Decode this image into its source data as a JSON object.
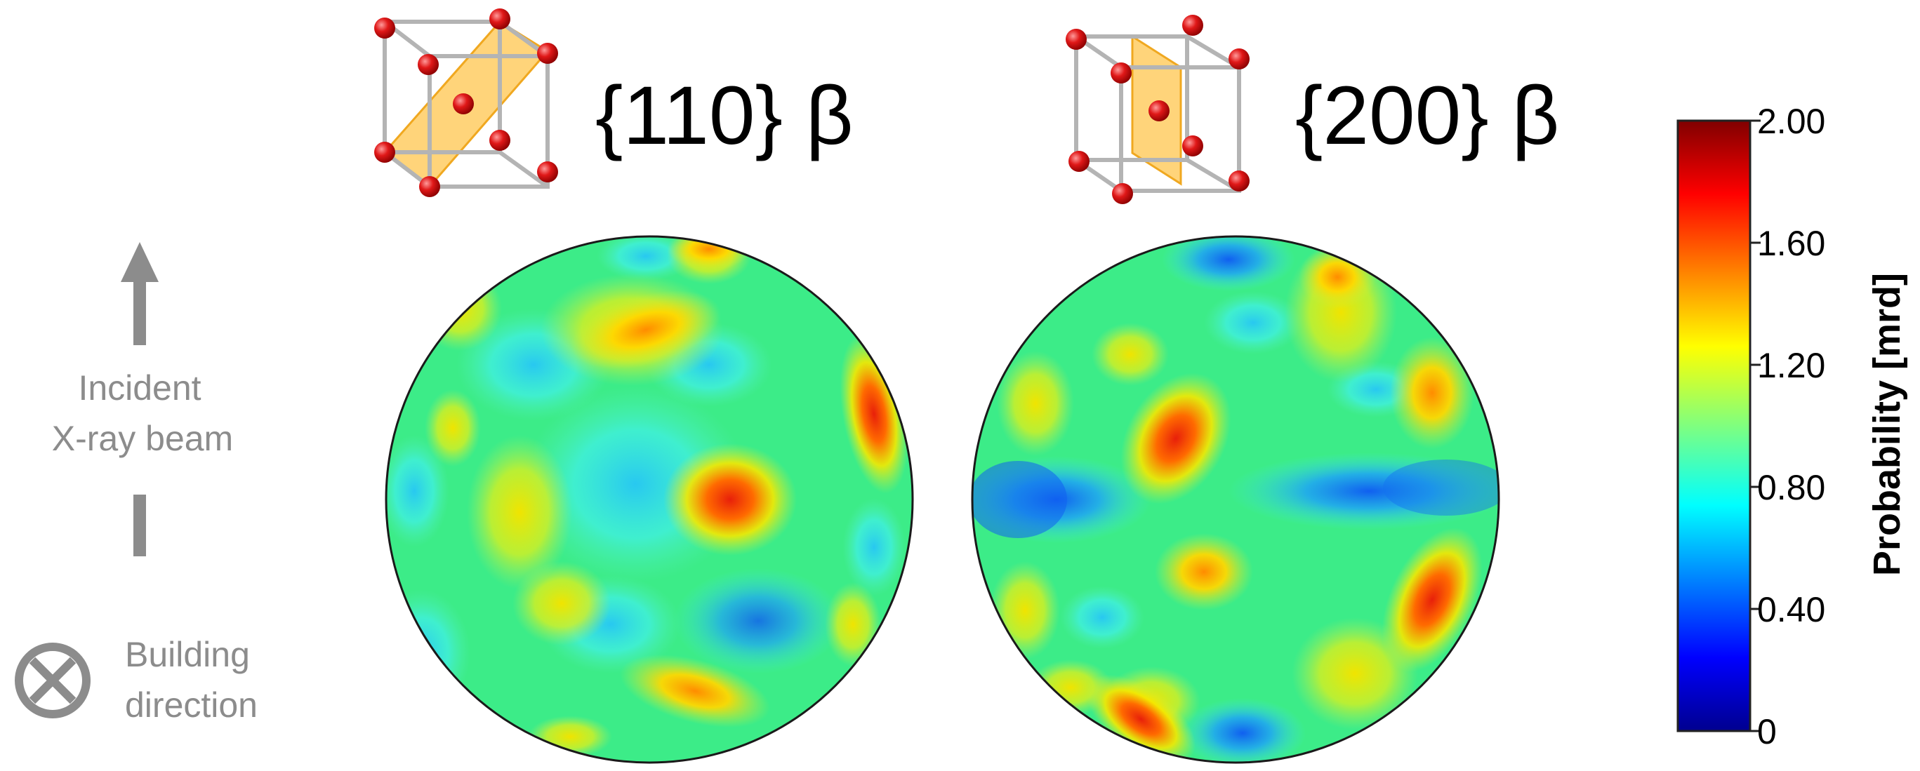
{
  "left_panel": {
    "beam_label_line1": "Incident",
    "beam_label_line2": "X-ray beam",
    "building_label_line1": "Building",
    "building_label_line2": "direction",
    "arrow_icon": "up-arrow-icon",
    "direction_icon": "circled-x-icon",
    "color": "#8c8c8c"
  },
  "pole_figures": [
    {
      "title": "{110} β",
      "cell_plane": "diagonal-110"
    },
    {
      "title": "{200} β",
      "cell_plane": "face-200"
    }
  ],
  "colorbar": {
    "label": "Probability [mrd]",
    "ticks": [
      "2.00",
      "1.60",
      "1.20",
      "0.80",
      "0.40",
      "0"
    ],
    "min": 0,
    "max": 2.0,
    "colormap": "jet",
    "colors": [
      "#00008f",
      "#0000ff",
      "#00ffff",
      "#7fff7f",
      "#ffff00",
      "#ff0000",
      "#800000"
    ]
  },
  "colors": {
    "atom": "#d81010",
    "plane_fill": "#ffc64d",
    "cell_edge": "#b4b4b4"
  }
}
